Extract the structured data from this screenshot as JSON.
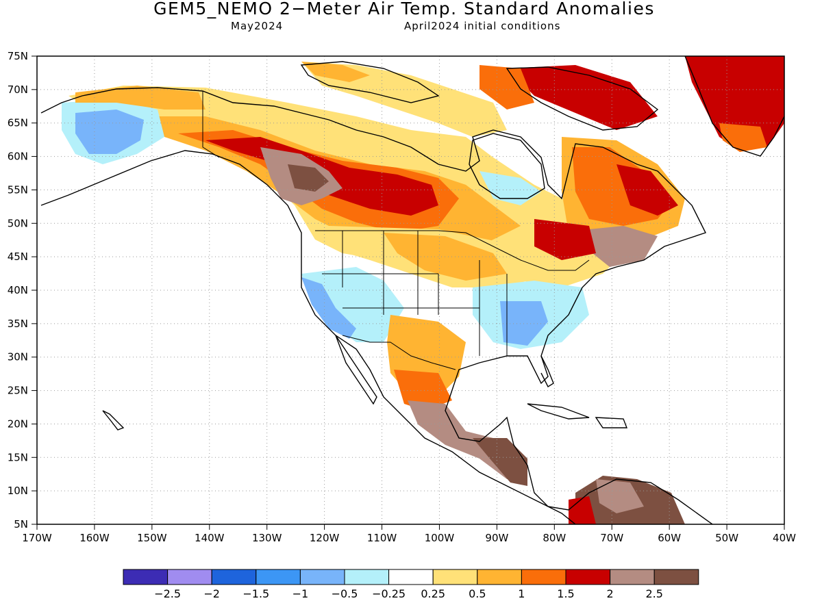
{
  "title": "GEM5_NEMO 2−Meter Air Temp. Standard Anomalies",
  "subtitle_left": "May2024",
  "subtitle_right": "April2024 initial conditions",
  "map": {
    "lat_labels": [
      "75N",
      "70N",
      "65N",
      "60N",
      "55N",
      "50N",
      "45N",
      "40N",
      "35N",
      "30N",
      "25N",
      "20N",
      "15N",
      "10N",
      "5N"
    ],
    "lon_labels": [
      "170W",
      "160W",
      "150W",
      "140W",
      "130W",
      "120W",
      "110W",
      "100W",
      "90W",
      "80W",
      "70W",
      "60W",
      "50W",
      "40W"
    ],
    "lat_range": [
      5,
      75
    ],
    "lon_range": [
      -170,
      -40
    ],
    "gridlines": "dotted"
  },
  "legend": {
    "colors": [
      "#3c2cb4",
      "#a08cf0",
      "#1e64dc",
      "#3c96f5",
      "#78b4fa",
      "#b4f0fa",
      "#ffffff",
      "#ffe178",
      "#ffb432",
      "#fa6e0a",
      "#c80000",
      "#b48c82",
      "#7d5041"
    ],
    "labels": [
      "−2.5",
      "−2",
      "−1.5",
      "−1",
      "−0.5",
      "−0.25",
      "0.25",
      "0.5",
      "1",
      "1.5",
      "2",
      "2.5"
    ]
  }
}
